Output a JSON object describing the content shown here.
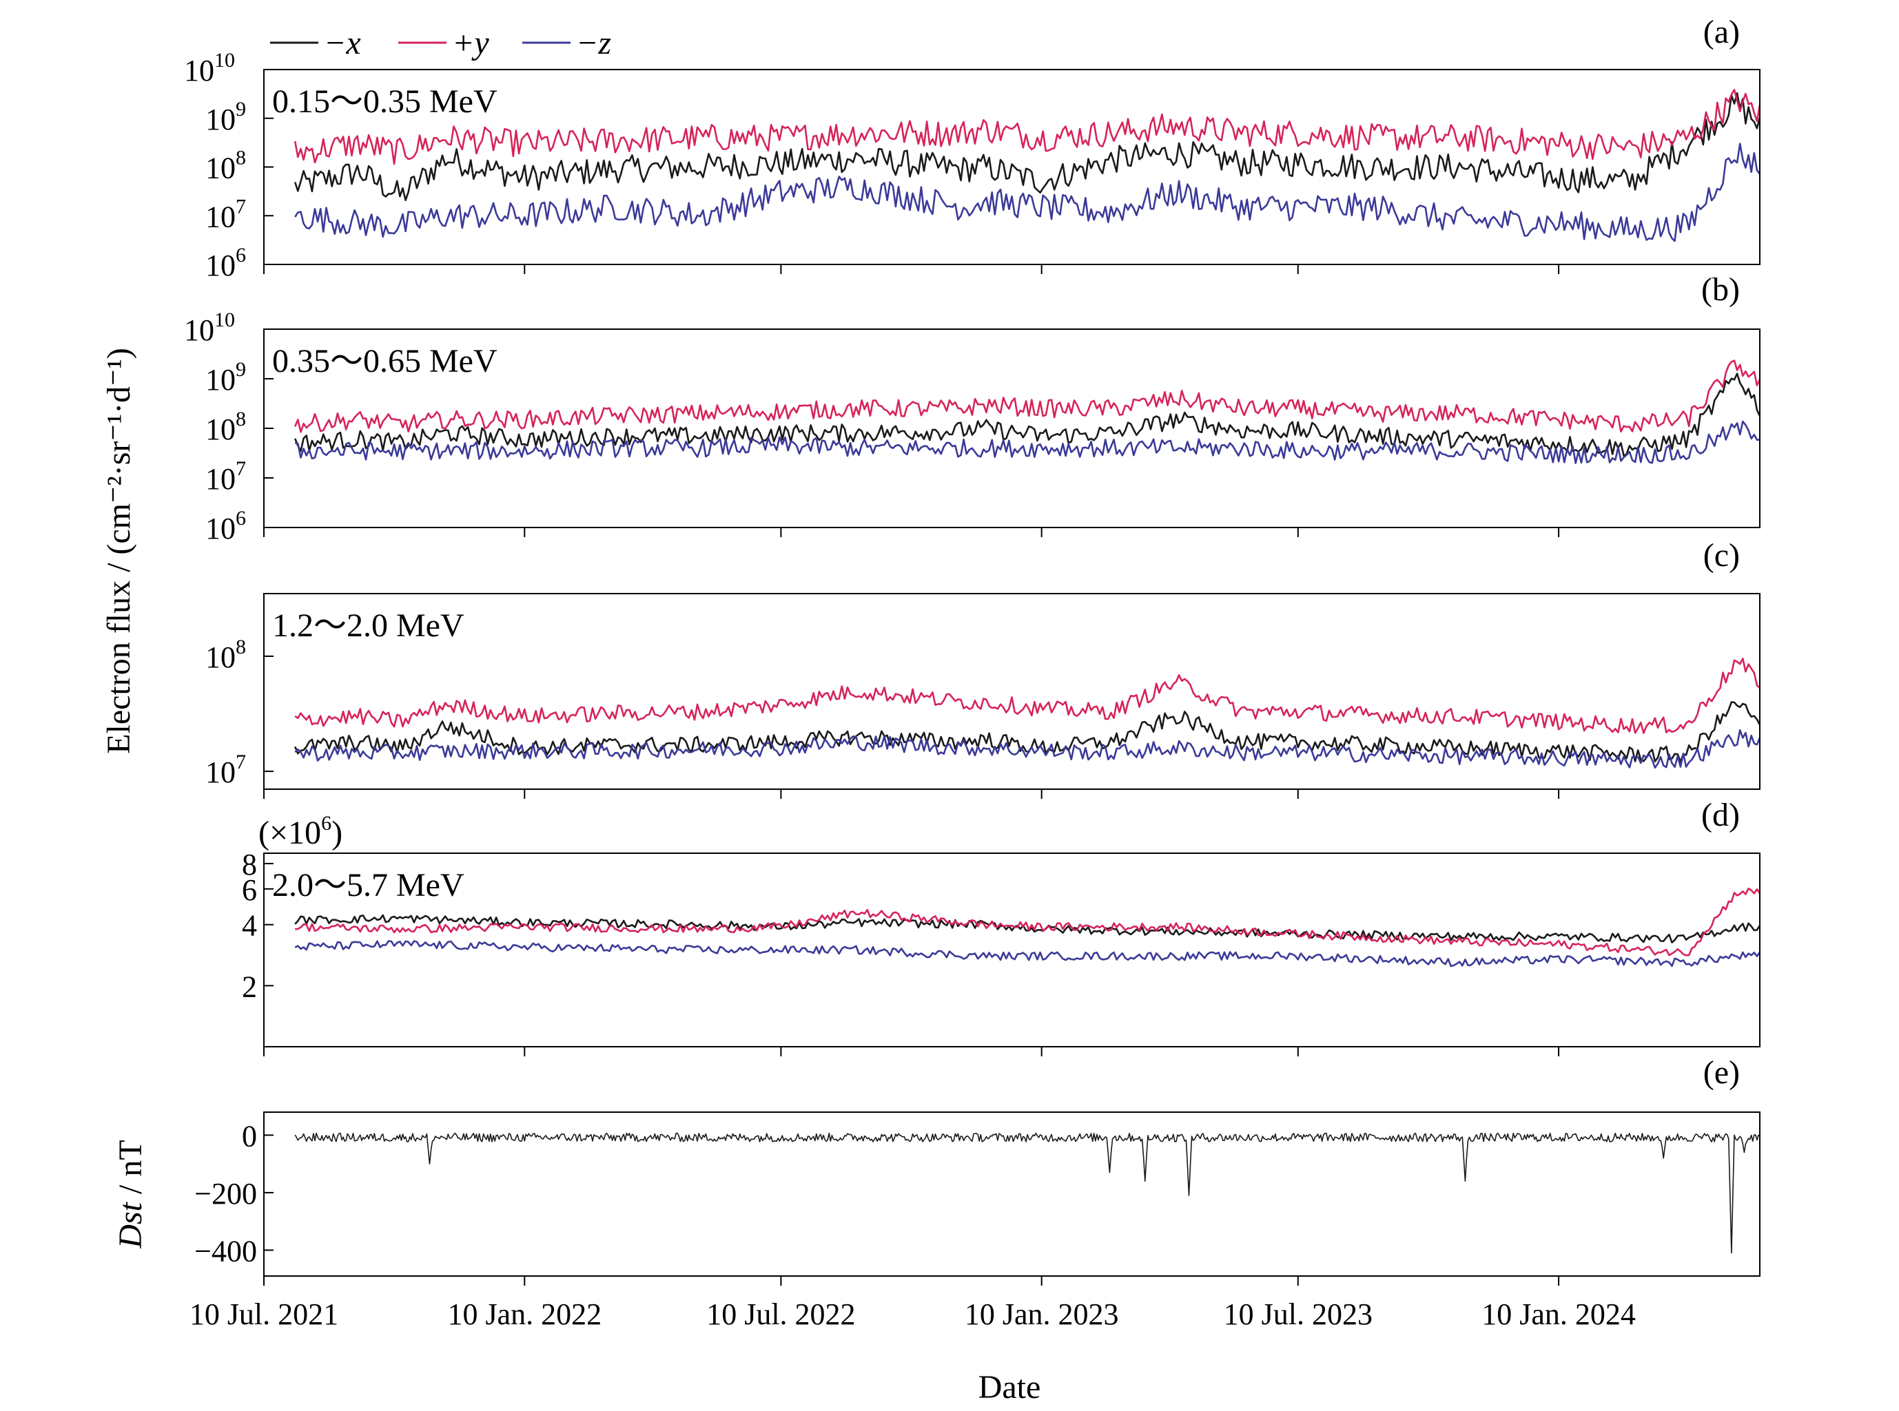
{
  "figure": {
    "ylabel": "Electron flux / (cm⁻²·sr⁻¹·d⁻¹)",
    "xlabel": "Date"
  },
  "legend": [
    {
      "label": "−x",
      "color": "#1a1a1a"
    },
    {
      "label": "+y",
      "color": "#d6245a"
    },
    {
      "label": "−z",
      "color": "#3b3a99"
    }
  ],
  "chart_data": [
    {
      "type": "line",
      "panel": "(a)",
      "annotation": "0.15～0.35 MeV",
      "yscale": "log",
      "ylim": [
        1000000.0,
        10000000000.0
      ],
      "yticks": [
        {
          "label": "10",
          "exp": "6",
          "value": 1000000.0
        },
        {
          "label": "10",
          "exp": "7",
          "value": 10000000.0
        },
        {
          "label": "10",
          "exp": "8",
          "value": 100000000.0
        },
        {
          "label": "10",
          "exp": "9",
          "value": 1000000000.0
        },
        {
          "label": "10",
          "exp": "10",
          "value": 10000000000.0
        }
      ],
      "xlim": [
        "2021-07-10",
        "2024-05-31"
      ],
      "series": [
        {
          "name": "−x",
          "color": "#1a1a1a",
          "x": [
            "2021-08-01",
            "2021-09-15",
            "2021-10-15",
            "2021-11-15",
            "2022-01-10",
            "2022-03-15",
            "2022-05-15",
            "2022-07-10",
            "2022-09-01",
            "2022-11-15",
            "2022-12-01",
            "2023-01-10",
            "2023-03-01",
            "2023-04-15",
            "2023-06-01",
            "2023-07-10",
            "2023-09-01",
            "2023-11-01",
            "2024-01-10",
            "2024-03-01",
            "2024-04-10",
            "2024-05-15",
            "2024-05-31"
          ],
          "values": [
            40000000.0,
            80000000.0,
            25000000.0,
            150000000.0,
            60000000.0,
            90000000.0,
            100000000.0,
            120000000.0,
            150000000.0,
            90000000.0,
            100000000.0,
            50000000.0,
            140000000.0,
            200000000.0,
            120000000.0,
            120000000.0,
            100000000.0,
            100000000.0,
            60000000.0,
            50000000.0,
            300000000.0,
            2000000000.0,
            700000000.0
          ]
        },
        {
          "name": "+y",
          "color": "#d6245a",
          "x": [
            "2021-08-01",
            "2021-09-15",
            "2021-10-15",
            "2021-11-15",
            "2022-01-10",
            "2022-03-15",
            "2022-05-15",
            "2022-07-10",
            "2022-09-01",
            "2022-11-15",
            "2022-12-01",
            "2023-01-10",
            "2023-03-01",
            "2023-04-15",
            "2023-06-01",
            "2023-07-10",
            "2023-09-01",
            "2023-11-01",
            "2024-01-10",
            "2024-03-01",
            "2024-04-10",
            "2024-05-15",
            "2024-05-31"
          ],
          "values": [
            200000000.0,
            300000000.0,
            200000000.0,
            400000000.0,
            300000000.0,
            350000000.0,
            400000000.0,
            400000000.0,
            500000000.0,
            500000000.0,
            600000000.0,
            400000000.0,
            500000000.0,
            700000000.0,
            500000000.0,
            500000000.0,
            400000000.0,
            400000000.0,
            300000000.0,
            250000000.0,
            400000000.0,
            2500000000.0,
            1200000000.0
          ]
        },
        {
          "name": "−z",
          "color": "#3b3a99",
          "x": [
            "2021-08-01",
            "2021-09-15",
            "2021-10-15",
            "2021-11-15",
            "2022-01-10",
            "2022-03-15",
            "2022-05-15",
            "2022-07-10",
            "2022-09-01",
            "2022-11-15",
            "2022-12-01",
            "2023-01-10",
            "2023-03-01",
            "2023-04-15",
            "2023-06-01",
            "2023-07-10",
            "2023-09-01",
            "2023-11-01",
            "2024-01-10",
            "2024-03-01",
            "2024-04-10",
            "2024-05-15",
            "2024-05-31"
          ],
          "values": [
            10000000.0,
            7000000.0,
            6000000.0,
            10000000.0,
            10000000.0,
            15000000.0,
            10000000.0,
            30000000.0,
            40000000.0,
            15000000.0,
            20000000.0,
            15000000.0,
            12000000.0,
            30000000.0,
            15000000.0,
            15000000.0,
            15000000.0,
            8000000.0,
            7000000.0,
            5000000.0,
            6000000.0,
            200000000.0,
            100000000.0
          ]
        }
      ]
    },
    {
      "type": "line",
      "panel": "(b)",
      "annotation": "0.35～0.65 MeV",
      "yscale": "log",
      "ylim": [
        1000000.0,
        10000000000.0
      ],
      "yticks": [
        {
          "label": "10",
          "exp": "6",
          "value": 1000000.0
        },
        {
          "label": "10",
          "exp": "7",
          "value": 10000000.0
        },
        {
          "label": "10",
          "exp": "8",
          "value": 100000000.0
        },
        {
          "label": "10",
          "exp": "9",
          "value": 1000000000.0
        },
        {
          "label": "10",
          "exp": "10",
          "value": 10000000000.0
        }
      ],
      "xlim": [
        "2021-07-10",
        "2024-05-31"
      ],
      "series": [
        {
          "name": "−x",
          "color": "#1a1a1a",
          "x": [
            "2021-08-01",
            "2021-09-15",
            "2021-10-15",
            "2021-11-15",
            "2022-01-10",
            "2022-03-15",
            "2022-05-15",
            "2022-07-10",
            "2022-09-01",
            "2022-11-15",
            "2022-12-01",
            "2023-01-10",
            "2023-03-01",
            "2023-04-15",
            "2023-06-01",
            "2023-07-10",
            "2023-09-01",
            "2023-11-01",
            "2024-01-10",
            "2024-03-01",
            "2024-04-10",
            "2024-05-15",
            "2024-05-31"
          ],
          "values": [
            50000000.0,
            60000000.0,
            50000000.0,
            80000000.0,
            60000000.0,
            70000000.0,
            70000000.0,
            80000000.0,
            80000000.0,
            90000000.0,
            100000000.0,
            70000000.0,
            80000000.0,
            150000000.0,
            90000000.0,
            90000000.0,
            70000000.0,
            60000000.0,
            50000000.0,
            40000000.0,
            60000000.0,
            1200000000.0,
            250000000.0
          ]
        },
        {
          "name": "+y",
          "color": "#d6245a",
          "x": [
            "2021-08-01",
            "2021-09-15",
            "2021-10-15",
            "2021-11-15",
            "2022-01-10",
            "2022-03-15",
            "2022-05-15",
            "2022-07-10",
            "2022-09-01",
            "2022-11-15",
            "2022-12-01",
            "2023-01-10",
            "2023-03-01",
            "2023-04-15",
            "2023-06-01",
            "2023-07-10",
            "2023-09-01",
            "2023-11-01",
            "2024-01-10",
            "2024-03-01",
            "2024-04-10",
            "2024-05-15",
            "2024-05-31"
          ],
          "values": [
            120000000.0,
            150000000.0,
            120000000.0,
            150000000.0,
            150000000.0,
            180000000.0,
            200000000.0,
            220000000.0,
            250000000.0,
            250000000.0,
            300000000.0,
            250000000.0,
            250000000.0,
            400000000.0,
            250000000.0,
            250000000.0,
            200000000.0,
            200000000.0,
            150000000.0,
            120000000.0,
            150000000.0,
            2000000000.0,
            800000000.0
          ]
        },
        {
          "name": "−z",
          "color": "#3b3a99",
          "x": [
            "2021-08-01",
            "2021-09-15",
            "2021-10-15",
            "2021-11-15",
            "2022-01-10",
            "2022-03-15",
            "2022-05-15",
            "2022-07-10",
            "2022-09-01",
            "2022-11-15",
            "2022-12-01",
            "2023-01-10",
            "2023-03-01",
            "2023-04-15",
            "2023-06-01",
            "2023-07-10",
            "2023-09-01",
            "2023-11-01",
            "2024-01-10",
            "2024-03-01",
            "2024-04-10",
            "2024-05-15",
            "2024-05-31"
          ],
          "values": [
            35000000.0,
            35000000.0,
            35000000.0,
            35000000.0,
            35000000.0,
            40000000.0,
            40000000.0,
            45000000.0,
            40000000.0,
            40000000.0,
            40000000.0,
            40000000.0,
            40000000.0,
            40000000.0,
            40000000.0,
            35000000.0,
            35000000.0,
            35000000.0,
            30000000.0,
            30000000.0,
            30000000.0,
            100000000.0,
            80000000.0
          ]
        }
      ]
    },
    {
      "type": "line",
      "panel": "(c)",
      "annotation": "1.2～2.0 MeV",
      "yscale": "log",
      "ylim": [
        7000000.0,
        350000000.0
      ],
      "yticks": [
        {
          "label": "10",
          "exp": "7",
          "value": 10000000.0
        },
        {
          "label": "10",
          "exp": "8",
          "value": 100000000.0
        }
      ],
      "xlim": [
        "2021-07-10",
        "2024-05-31"
      ],
      "series": [
        {
          "name": "−x",
          "color": "#1a1a1a",
          "x": [
            "2021-08-01",
            "2021-09-15",
            "2021-10-15",
            "2021-11-15",
            "2022-01-10",
            "2022-03-15",
            "2022-05-15",
            "2022-07-10",
            "2022-09-01",
            "2022-11-15",
            "2022-12-01",
            "2023-01-10",
            "2023-03-01",
            "2023-04-15",
            "2023-06-01",
            "2023-07-10",
            "2023-09-01",
            "2023-11-01",
            "2024-01-10",
            "2024-03-01",
            "2024-04-10",
            "2024-05-15",
            "2024-05-31"
          ],
          "values": [
            16000000.0,
            18000000.0,
            16000000.0,
            25000000.0,
            16000000.0,
            17000000.0,
            17000000.0,
            18000000.0,
            20000000.0,
            18000000.0,
            19000000.0,
            16000000.0,
            18000000.0,
            30000000.0,
            18000000.0,
            18000000.0,
            17000000.0,
            16000000.0,
            15000000.0,
            14000000.0,
            14000000.0,
            40000000.0,
            25000000.0
          ]
        },
        {
          "name": "+y",
          "color": "#d6245a",
          "x": [
            "2021-08-01",
            "2021-09-15",
            "2021-10-15",
            "2021-11-15",
            "2022-01-10",
            "2022-03-15",
            "2022-05-15",
            "2022-07-10",
            "2022-09-01",
            "2022-11-15",
            "2022-12-01",
            "2023-01-10",
            "2023-03-01",
            "2023-04-15",
            "2023-06-01",
            "2023-07-10",
            "2023-09-01",
            "2023-11-01",
            "2024-01-10",
            "2024-03-01",
            "2024-04-10",
            "2024-05-15",
            "2024-05-31"
          ],
          "values": [
            28000000.0,
            30000000.0,
            27000000.0,
            38000000.0,
            30000000.0,
            32000000.0,
            33000000.0,
            38000000.0,
            50000000.0,
            40000000.0,
            40000000.0,
            35000000.0,
            33000000.0,
            60000000.0,
            33000000.0,
            33000000.0,
            31000000.0,
            30000000.0,
            27000000.0,
            25000000.0,
            25000000.0,
            90000000.0,
            60000000.0
          ]
        },
        {
          "name": "−z",
          "color": "#3b3a99",
          "x": [
            "2021-08-01",
            "2021-09-15",
            "2021-10-15",
            "2021-11-15",
            "2022-01-10",
            "2022-03-15",
            "2022-05-15",
            "2022-07-10",
            "2022-09-01",
            "2022-11-15",
            "2022-12-01",
            "2023-01-10",
            "2023-03-01",
            "2023-04-15",
            "2023-06-01",
            "2023-07-10",
            "2023-09-01",
            "2023-11-01",
            "2024-01-10",
            "2024-03-01",
            "2024-04-10",
            "2024-05-15",
            "2024-05-31"
          ],
          "values": [
            14500000.0,
            14500000.0,
            14500000.0,
            15000000.0,
            15000000.0,
            15000000.0,
            15500000.0,
            16000000.0,
            18000000.0,
            16000000.0,
            16000000.0,
            15000000.0,
            14500000.0,
            16000000.0,
            14500000.0,
            14500000.0,
            14000000.0,
            13500000.0,
            13000000.0,
            12500000.0,
            12500000.0,
            20000000.0,
            18000000.0
          ]
        }
      ]
    },
    {
      "type": "line",
      "panel": "(d)",
      "annotation": "2.0～5.7 MeV",
      "yscale": "log",
      "multiplier_label": "(×10",
      "multiplier_exp": "6",
      "multiplier_close": ")",
      "ylim": [
        1,
        9
      ],
      "yticks": [
        {
          "label": "2",
          "value": 2
        },
        {
          "label": "4",
          "value": 4
        },
        {
          "label": "6",
          "value": 6
        },
        {
          "label": "8",
          "value": 8
        }
      ],
      "xlim": [
        "2021-07-10",
        "2024-05-31"
      ],
      "series": [
        {
          "name": "−x",
          "color": "#1a1a1a",
          "x": [
            "2021-08-01",
            "2021-10-15",
            "2022-01-10",
            "2022-05-15",
            "2022-07-10",
            "2022-09-01",
            "2022-12-01",
            "2023-01-10",
            "2023-04-15",
            "2023-07-10",
            "2023-11-01",
            "2024-01-10",
            "2024-04-10",
            "2024-05-15",
            "2024-05-31"
          ],
          "values": [
            4.2,
            4.3,
            4.1,
            4.0,
            3.9,
            4.1,
            4.0,
            3.8,
            3.7,
            3.6,
            3.5,
            3.5,
            3.4,
            3.9,
            3.9
          ]
        },
        {
          "name": "+y",
          "color": "#d6245a",
          "x": [
            "2021-08-01",
            "2021-10-15",
            "2022-01-10",
            "2022-05-15",
            "2022-07-10",
            "2022-09-01",
            "2022-12-01",
            "2023-01-10",
            "2023-04-15",
            "2023-07-10",
            "2023-11-01",
            "2024-01-10",
            "2024-04-10",
            "2024-05-15",
            "2024-05-31"
          ],
          "values": [
            3.9,
            3.8,
            3.9,
            3.8,
            3.9,
            4.6,
            4.0,
            3.9,
            3.9,
            3.6,
            3.3,
            3.2,
            2.9,
            5.8,
            5.8
          ]
        },
        {
          "name": "−z",
          "color": "#3b3a99",
          "x": [
            "2021-08-01",
            "2021-10-15",
            "2022-01-10",
            "2022-05-15",
            "2022-07-10",
            "2022-09-01",
            "2022-12-01",
            "2023-01-10",
            "2023-04-15",
            "2023-07-10",
            "2023-11-01",
            "2024-01-10",
            "2024-04-10",
            "2024-05-15",
            "2024-05-31"
          ],
          "values": [
            3.1,
            3.2,
            3.1,
            3.0,
            3.0,
            3.0,
            2.8,
            2.8,
            2.8,
            2.8,
            2.6,
            2.7,
            2.6,
            2.8,
            2.8
          ]
        }
      ]
    },
    {
      "type": "line",
      "panel": "(e)",
      "ylabel": "Dst / nT",
      "ylabel_italic": "Dst",
      "ylabel_rest": " / nT",
      "yscale": "linear",
      "ylim": [
        -490,
        80
      ],
      "yticks": [
        {
          "label": "0",
          "value": 0
        },
        {
          "label": "−200",
          "value": -200
        },
        {
          "label": "−400",
          "value": -400
        }
      ],
      "xlim": [
        "2021-07-10",
        "2024-05-31"
      ],
      "series": [
        {
          "name": "Dst",
          "color": "#1a1a1a",
          "x": [
            "2021-08-01",
            "2021-11-04",
            "2022-01-10",
            "2023-02-27",
            "2023-03-24",
            "2023-04-24",
            "2023-11-05",
            "2024-03-24",
            "2024-05-11",
            "2024-05-20",
            "2024-05-31"
          ],
          "values": [
            -5,
            -100,
            -5,
            -130,
            -160,
            -210,
            -160,
            -80,
            -410,
            -60,
            -5
          ]
        }
      ]
    }
  ],
  "xticks": [
    "10 Jul. 2021",
    "10 Jan. 2022",
    "10 Jul. 2022",
    "10 Jan. 2023",
    "10 Jul. 2023",
    "10 Jan. 2024"
  ],
  "xtick_dates": [
    "2021-07-10",
    "2022-01-10",
    "2022-07-10",
    "2023-01-10",
    "2023-07-10",
    "2024-01-10"
  ]
}
